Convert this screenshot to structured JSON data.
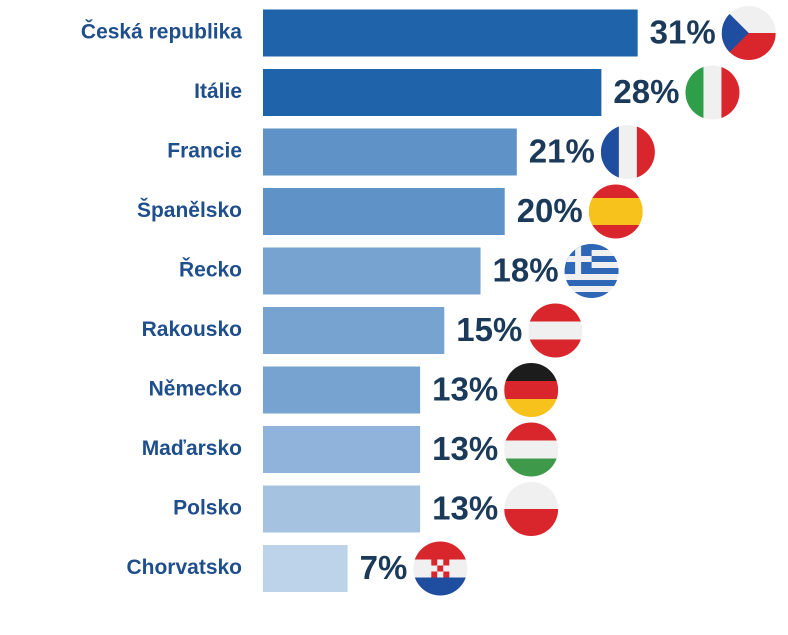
{
  "chart_data": {
    "type": "bar",
    "orientation": "horizontal",
    "categories": [
      "Česká republika",
      "Itálie",
      "Francie",
      "Španělsko",
      "Řecko",
      "Rakousko",
      "Německo",
      "Maďarsko",
      "Polsko",
      "Chorvatsko"
    ],
    "values": [
      31,
      28,
      21,
      20,
      18,
      15,
      13,
      13,
      13,
      7
    ],
    "value_labels": [
      "31%",
      "28%",
      "21%",
      "20%",
      "18%",
      "15%",
      "13%",
      "13%",
      "13%",
      "7%"
    ],
    "colors": [
      "#1f63ab",
      "#1f63ab",
      "#5f93c7",
      "#5f93c7",
      "#77a3d0",
      "#77a3d0",
      "#77a3d0",
      "#8fb3da",
      "#a5c2e1",
      "#bdd3ea"
    ],
    "xlim": [
      0,
      35
    ]
  }
}
